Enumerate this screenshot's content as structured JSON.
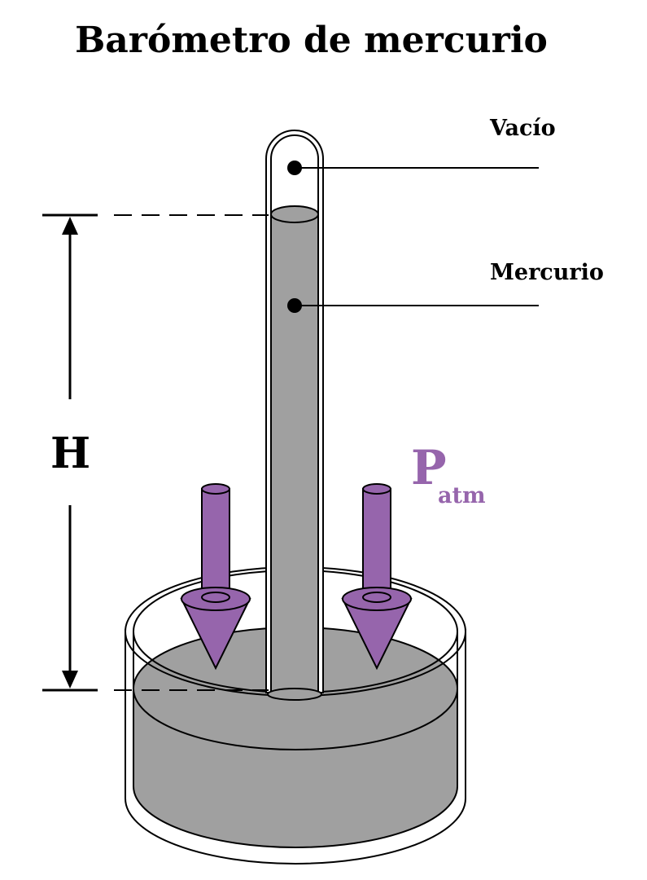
{
  "title": "Barómetro de mercurio",
  "labels": {
    "vacuum": "Vacío",
    "mercury": "Mercurio",
    "height": "H",
    "pressure_symbol": "P",
    "pressure_subscript": "atm"
  },
  "colors": {
    "mercury": "#a0a0a0",
    "arrow": "#9665ac",
    "outline": "#000000",
    "background": "#ffffff"
  }
}
